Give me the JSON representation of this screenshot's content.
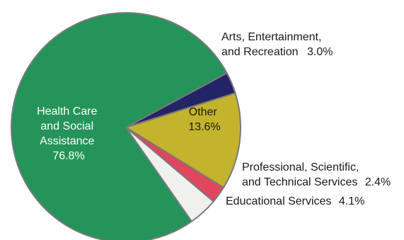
{
  "chart_data": {
    "type": "pie",
    "title": "",
    "slices": [
      {
        "key": "health",
        "label": [
          "Health Care",
          "and Social",
          "Assistance"
        ],
        "value_label": "76.8%",
        "value": 76.8,
        "color": "#24945a"
      },
      {
        "key": "arts",
        "label": [
          "Arts, Entertainment,",
          "and Recreation"
        ],
        "value_label": "3.0%",
        "value": 3.0,
        "color": "#232468"
      },
      {
        "key": "other",
        "label": [
          "Other"
        ],
        "value_label": "13.6%",
        "value": 13.6,
        "color": "#c4b32c"
      },
      {
        "key": "prof",
        "label": [
          "Professional, Scientific,",
          "and Technical Services"
        ],
        "value_label": "2.4%",
        "value": 2.4,
        "color": "#e0475c"
      },
      {
        "key": "edu",
        "label": [
          "Educational Services"
        ],
        "value_label": "4.1%",
        "value": 4.1,
        "color": "#f0f1ef"
      }
    ]
  }
}
